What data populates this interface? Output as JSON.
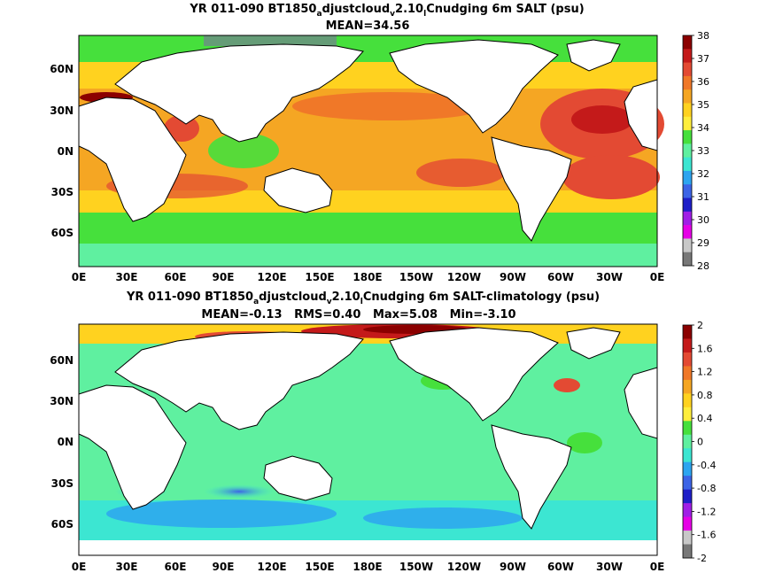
{
  "chart_data": [
    {
      "type": "heatmap",
      "title_parts": [
        "YR 011-090 BT1850",
        "a",
        "djustcloud",
        "v",
        "2.10",
        "l",
        "Cnudging 6m SALT (psu)"
      ],
      "subtitle": "MEAN=34.56",
      "x_ticks": [
        "0E",
        "30E",
        "60E",
        "90E",
        "120E",
        "150E",
        "180E",
        "150W",
        "120W",
        "90W",
        "60W",
        "30W",
        "0E"
      ],
      "y_ticks": [
        "60N",
        "30N",
        "0N",
        "30S",
        "60S"
      ],
      "colorbar": {
        "ticks": [
          "38",
          "37",
          "36",
          "35",
          "34",
          "33",
          "32",
          "31",
          "30",
          "29",
          "28"
        ],
        "colors": [
          "#8b0000",
          "#c41a1a",
          "#e34a33",
          "#f07828",
          "#f5a623",
          "#ffd21f",
          "#ffee3c",
          "#46e03c",
          "#5ff0a0",
          "#3ce6d2",
          "#2da5f0",
          "#3c64e6",
          "#1e1ec8",
          "#a01ee6",
          "#e600e6",
          "#c8c8c8",
          "#787878"
        ]
      },
      "range": [
        28,
        38
      ]
    },
    {
      "type": "heatmap",
      "title_parts": [
        "YR 011-090 BT1850",
        "a",
        "djustcloud",
        "v",
        "2.10",
        "l",
        "Cnudging 6m SALT-climatology (psu)"
      ],
      "subtitle": "MEAN=-0.13   RMS=0.40   Max=5.08   Min=-3.10",
      "x_ticks": [
        "0E",
        "30E",
        "60E",
        "90E",
        "120E",
        "150E",
        "180E",
        "150W",
        "120W",
        "90W",
        "60W",
        "30W",
        "0E"
      ],
      "y_ticks": [
        "60N",
        "30N",
        "0N",
        "30S",
        "60S"
      ],
      "colorbar": {
        "ticks": [
          "2",
          "1.6",
          "1.2",
          "0.8",
          "0.4",
          "0",
          "-0.4",
          "-0.8",
          "-1.2",
          "-1.6",
          "-2"
        ],
        "colors": [
          "#8b0000",
          "#c41a1a",
          "#e34a33",
          "#f07828",
          "#f5a623",
          "#ffd21f",
          "#ffee3c",
          "#46e03c",
          "#5ff0a0",
          "#3ce6d2",
          "#2da5f0",
          "#3c64e6",
          "#1e1ec8",
          "#a01ee6",
          "#e600e6",
          "#c8c8c8",
          "#787878"
        ]
      },
      "range": [
        -2,
        2
      ]
    }
  ]
}
